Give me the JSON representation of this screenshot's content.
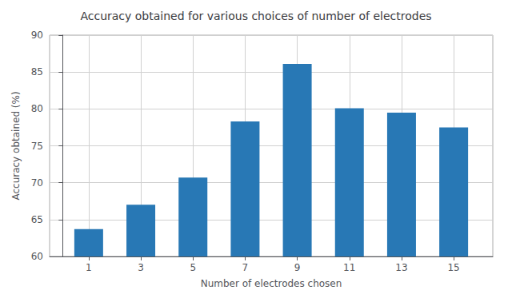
{
  "chart_data": {
    "type": "bar",
    "title": "Accuracy obtained for various choices of number of electrodes",
    "xlabel": "Number of electrodes chosen",
    "ylabel": "Accuracy obtained (%)",
    "x": [
      1,
      3,
      5,
      7,
      9,
      11,
      13,
      15
    ],
    "values": [
      63.7,
      67.0,
      70.7,
      78.3,
      86.1,
      80.1,
      79.5,
      77.5
    ],
    "color": "#2878b5",
    "xlim": [
      -0.5,
      16.5
    ],
    "xticks": [
      1,
      3,
      5,
      7,
      9,
      11,
      13,
      15
    ],
    "ylim": [
      60,
      90
    ],
    "yticks": [
      60,
      65,
      70,
      75,
      80,
      85,
      90
    ],
    "grid": true
  }
}
